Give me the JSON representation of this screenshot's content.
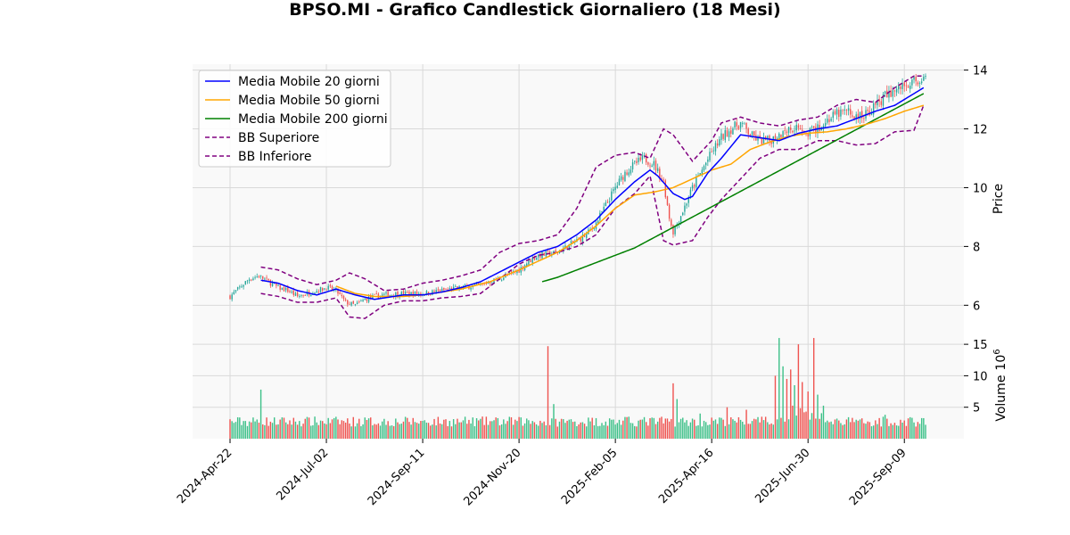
{
  "chart_data": {
    "type": "candlestick",
    "title": "BPSO.MI - Grafico Candlestick Giornaliero (18 Mesi)",
    "x_ticks": [
      "2024-Apr-22",
      "2024-Jul-02",
      "2024-Sep-11",
      "2024-Nov-20",
      "2025-Feb-05",
      "2025-Apr-16",
      "2025-Jun-30",
      "2025-Sep-09"
    ],
    "price_panel": {
      "ylabel": "Price",
      "ylim": [
        5.1,
        14.2
      ],
      "yticks": [
        6,
        8,
        10,
        12,
        14
      ],
      "grid": true
    },
    "volume_panel": {
      "ylabel": "Volume",
      "multiplier_label": "10",
      "multiplier_exp": "6",
      "ylim": [
        0,
        17
      ],
      "yticks": [
        5,
        10,
        15
      ],
      "grid": true
    },
    "legend": {
      "placement": "top-left",
      "items": [
        {
          "label": "Media Mobile 20 giorni",
          "color": "#0000ff",
          "style": "solid"
        },
        {
          "label": "Media Mobile 50 giorni",
          "color": "#ffa500",
          "style": "solid"
        },
        {
          "label": "Media Mobile 200 giorni",
          "color": "#008000",
          "style": "solid"
        },
        {
          "label": "BB Superiore",
          "color": "#800080",
          "style": "dashed"
        },
        {
          "label": "BB Inferiore",
          "color": "#800080",
          "style": "dashed"
        }
      ]
    },
    "colors": {
      "up": "#26a69a",
      "up_volume": "#3cc088",
      "down": "#ef5350",
      "background": "#f9f9f9"
    },
    "price_anchors": [
      [
        0,
        6.3
      ],
      [
        5,
        6.6
      ],
      [
        10,
        6.9
      ],
      [
        15,
        7.0
      ],
      [
        20,
        6.8
      ],
      [
        25,
        6.6
      ],
      [
        30,
        6.5
      ],
      [
        35,
        6.3
      ],
      [
        40,
        6.4
      ],
      [
        45,
        6.5
      ],
      [
        50,
        6.6
      ],
      [
        55,
        6.5
      ],
      [
        60,
        6.1
      ],
      [
        65,
        6.0
      ],
      [
        70,
        6.2
      ],
      [
        75,
        6.3
      ],
      [
        80,
        6.35
      ],
      [
        90,
        6.4
      ],
      [
        100,
        6.4
      ],
      [
        110,
        6.5
      ],
      [
        120,
        6.6
      ],
      [
        130,
        6.7
      ],
      [
        140,
        6.9
      ],
      [
        150,
        7.2
      ],
      [
        155,
        7.5
      ],
      [
        160,
        7.7
      ],
      [
        170,
        7.8
      ],
      [
        180,
        8.2
      ],
      [
        185,
        8.4
      ],
      [
        190,
        8.8
      ],
      [
        195,
        9.4
      ],
      [
        200,
        10.0
      ],
      [
        205,
        10.5
      ],
      [
        210,
        10.8
      ],
      [
        215,
        11.0
      ],
      [
        220,
        10.8
      ],
      [
        225,
        10.2
      ],
      [
        228,
        9.0
      ],
      [
        230,
        8.5
      ],
      [
        235,
        9.2
      ],
      [
        240,
        10.0
      ],
      [
        245,
        10.6
      ],
      [
        250,
        11.2
      ],
      [
        255,
        11.7
      ],
      [
        260,
        12.0
      ],
      [
        265,
        12.2
      ],
      [
        270,
        11.8
      ],
      [
        275,
        11.6
      ],
      [
        280,
        11.6
      ],
      [
        285,
        11.8
      ],
      [
        290,
        12.0
      ],
      [
        295,
        12.1
      ],
      [
        300,
        11.9
      ],
      [
        305,
        12.0
      ],
      [
        310,
        12.3
      ],
      [
        315,
        12.5
      ],
      [
        320,
        12.6
      ],
      [
        325,
        12.4
      ],
      [
        330,
        12.5
      ],
      [
        335,
        12.8
      ],
      [
        340,
        13.1
      ],
      [
        345,
        13.3
      ],
      [
        350,
        13.5
      ],
      [
        355,
        13.6
      ],
      [
        360,
        13.7
      ]
    ],
    "ma20_anchors": [
      [
        16,
        6.85
      ],
      [
        25,
        6.75
      ],
      [
        35,
        6.5
      ],
      [
        45,
        6.35
      ],
      [
        55,
        6.55
      ],
      [
        65,
        6.35
      ],
      [
        75,
        6.2
      ],
      [
        80,
        6.25
      ],
      [
        90,
        6.35
      ],
      [
        100,
        6.35
      ],
      [
        110,
        6.45
      ],
      [
        120,
        6.6
      ],
      [
        130,
        6.8
      ],
      [
        145,
        7.3
      ],
      [
        160,
        7.8
      ],
      [
        170,
        8.0
      ],
      [
        180,
        8.4
      ],
      [
        190,
        8.9
      ],
      [
        200,
        9.6
      ],
      [
        210,
        10.2
      ],
      [
        218,
        10.6
      ],
      [
        222,
        10.4
      ],
      [
        230,
        9.8
      ],
      [
        236,
        9.6
      ],
      [
        240,
        9.7
      ],
      [
        248,
        10.5
      ],
      [
        255,
        11.0
      ],
      [
        265,
        11.8
      ],
      [
        275,
        11.7
      ],
      [
        285,
        11.6
      ],
      [
        295,
        11.85
      ],
      [
        305,
        12.0
      ],
      [
        315,
        12.1
      ],
      [
        325,
        12.35
      ],
      [
        335,
        12.6
      ],
      [
        345,
        12.8
      ],
      [
        355,
        13.2
      ],
      [
        360,
        13.4
      ]
    ],
    "ma50_anchors": [
      [
        55,
        6.65
      ],
      [
        65,
        6.4
      ],
      [
        75,
        6.3
      ],
      [
        90,
        6.3
      ],
      [
        100,
        6.35
      ],
      [
        110,
        6.45
      ],
      [
        120,
        6.55
      ],
      [
        135,
        6.8
      ],
      [
        150,
        7.2
      ],
      [
        160,
        7.5
      ],
      [
        170,
        7.8
      ],
      [
        180,
        8.2
      ],
      [
        190,
        8.7
      ],
      [
        200,
        9.3
      ],
      [
        210,
        9.75
      ],
      [
        220,
        9.85
      ],
      [
        230,
        10.0
      ],
      [
        240,
        10.3
      ],
      [
        250,
        10.6
      ],
      [
        260,
        10.8
      ],
      [
        270,
        11.3
      ],
      [
        280,
        11.55
      ],
      [
        290,
        11.75
      ],
      [
        300,
        11.85
      ],
      [
        310,
        11.9
      ],
      [
        320,
        12.0
      ],
      [
        330,
        12.15
      ],
      [
        340,
        12.35
      ],
      [
        350,
        12.6
      ],
      [
        360,
        12.8
      ]
    ],
    "ma200_anchors": [
      [
        162,
        6.8
      ],
      [
        170,
        6.95
      ],
      [
        180,
        7.2
      ],
      [
        190,
        7.45
      ],
      [
        200,
        7.7
      ],
      [
        210,
        7.95
      ],
      [
        220,
        8.3
      ],
      [
        230,
        8.65
      ],
      [
        240,
        9.0
      ],
      [
        250,
        9.35
      ],
      [
        260,
        9.7
      ],
      [
        270,
        10.05
      ],
      [
        280,
        10.4
      ],
      [
        290,
        10.75
      ],
      [
        300,
        11.1
      ],
      [
        310,
        11.45
      ],
      [
        320,
        11.8
      ],
      [
        330,
        12.15
      ],
      [
        340,
        12.5
      ],
      [
        350,
        12.85
      ],
      [
        360,
        13.2
      ]
    ],
    "bb_upper_anchors": [
      [
        16,
        7.3
      ],
      [
        25,
        7.2
      ],
      [
        35,
        6.9
      ],
      [
        45,
        6.7
      ],
      [
        55,
        6.85
      ],
      [
        62,
        7.1
      ],
      [
        70,
        6.9
      ],
      [
        80,
        6.5
      ],
      [
        90,
        6.55
      ],
      [
        100,
        6.75
      ],
      [
        110,
        6.85
      ],
      [
        120,
        7.0
      ],
      [
        130,
        7.2
      ],
      [
        140,
        7.8
      ],
      [
        150,
        8.1
      ],
      [
        160,
        8.2
      ],
      [
        170,
        8.4
      ],
      [
        180,
        9.3
      ],
      [
        190,
        10.7
      ],
      [
        200,
        11.1
      ],
      [
        210,
        11.2
      ],
      [
        218,
        11.0
      ],
      [
        225,
        12.0
      ],
      [
        230,
        11.8
      ],
      [
        240,
        10.9
      ],
      [
        250,
        11.6
      ],
      [
        255,
        12.2
      ],
      [
        265,
        12.4
      ],
      [
        275,
        12.2
      ],
      [
        285,
        12.1
      ],
      [
        295,
        12.3
      ],
      [
        305,
        12.4
      ],
      [
        315,
        12.8
      ],
      [
        325,
        13.0
      ],
      [
        335,
        12.9
      ],
      [
        345,
        13.4
      ],
      [
        355,
        13.8
      ],
      [
        360,
        13.8
      ]
    ],
    "bb_lower_anchors": [
      [
        16,
        6.4
      ],
      [
        25,
        6.3
      ],
      [
        35,
        6.1
      ],
      [
        45,
        6.1
      ],
      [
        55,
        6.25
      ],
      [
        62,
        5.6
      ],
      [
        70,
        5.55
      ],
      [
        80,
        6.0
      ],
      [
        90,
        6.15
      ],
      [
        100,
        6.15
      ],
      [
        110,
        6.25
      ],
      [
        120,
        6.3
      ],
      [
        130,
        6.4
      ],
      [
        140,
        6.9
      ],
      [
        150,
        7.4
      ],
      [
        160,
        7.7
      ],
      [
        170,
        7.8
      ],
      [
        180,
        8.0
      ],
      [
        190,
        8.4
      ],
      [
        200,
        9.3
      ],
      [
        210,
        9.8
      ],
      [
        218,
        10.4
      ],
      [
        225,
        8.2
      ],
      [
        230,
        8.05
      ],
      [
        240,
        8.2
      ],
      [
        248,
        9.0
      ],
      [
        255,
        9.6
      ],
      [
        265,
        10.3
      ],
      [
        275,
        11.0
      ],
      [
        285,
        11.3
      ],
      [
        295,
        11.3
      ],
      [
        305,
        11.6
      ],
      [
        315,
        11.6
      ],
      [
        325,
        11.45
      ],
      [
        335,
        11.5
      ],
      [
        345,
        11.9
      ],
      [
        355,
        11.95
      ],
      [
        360,
        12.8
      ]
    ],
    "volume_spikes": [
      [
        16,
        7.8
      ],
      [
        165,
        14.7
      ],
      [
        168,
        5.5
      ],
      [
        230,
        8.8
      ],
      [
        232,
        6.3
      ],
      [
        244,
        4.0
      ],
      [
        258,
        5.0
      ],
      [
        268,
        4.6
      ],
      [
        283,
        10.0
      ],
      [
        285,
        16.0
      ],
      [
        287,
        11.5
      ],
      [
        289,
        9.5
      ],
      [
        291,
        11.0
      ],
      [
        293,
        8.5
      ],
      [
        295,
        15.0
      ],
      [
        297,
        9.0
      ],
      [
        300,
        7.5
      ],
      [
        303,
        16.0
      ],
      [
        305,
        7.0
      ],
      [
        340,
        3.8
      ]
    ],
    "volume_base": 2.4,
    "n_candles": 362
  }
}
